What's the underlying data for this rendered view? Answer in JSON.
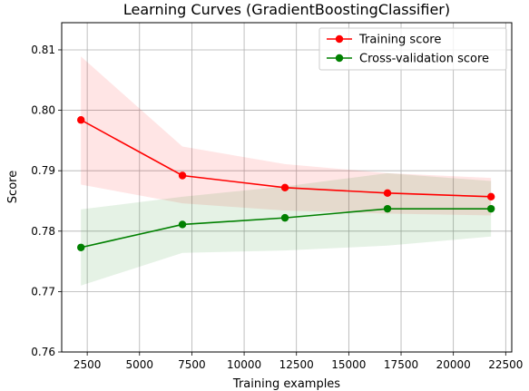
{
  "chart_data": {
    "type": "line",
    "title": "Learning Curves (GradientBoostingClassifier)",
    "xlabel": "Training examples",
    "ylabel": "Score",
    "xlim": [
      1280,
      22790
    ],
    "ylim": [
      0.76,
      0.8145
    ],
    "x": [
      2200,
      7050,
      11950,
      16850,
      21800
    ],
    "xticks": [
      2500,
      5000,
      7500,
      10000,
      12500,
      15000,
      17500,
      20000,
      22500
    ],
    "yticks": [
      0.76,
      0.77,
      0.78,
      0.79,
      0.8,
      0.81
    ],
    "grid": true,
    "legend_position": "top-right",
    "series": [
      {
        "name": "Training score",
        "color": "#ff0000",
        "band_color": "#ff0000",
        "values": [
          0.7984,
          0.7892,
          0.7872,
          0.7863,
          0.7857
        ],
        "lower": [
          0.7877,
          0.7846,
          0.7834,
          0.7829,
          0.7826
        ],
        "upper": [
          0.8089,
          0.794,
          0.7911,
          0.7896,
          0.7888
        ]
      },
      {
        "name": "Cross-validation score",
        "color": "#008000",
        "band_color": "#008000",
        "values": [
          0.7773,
          0.7811,
          0.7822,
          0.7837,
          0.7837
        ],
        "lower": [
          0.771,
          0.7764,
          0.7768,
          0.7776,
          0.7791
        ],
        "upper": [
          0.7836,
          0.7857,
          0.7874,
          0.7896,
          0.7883
        ]
      }
    ]
  }
}
